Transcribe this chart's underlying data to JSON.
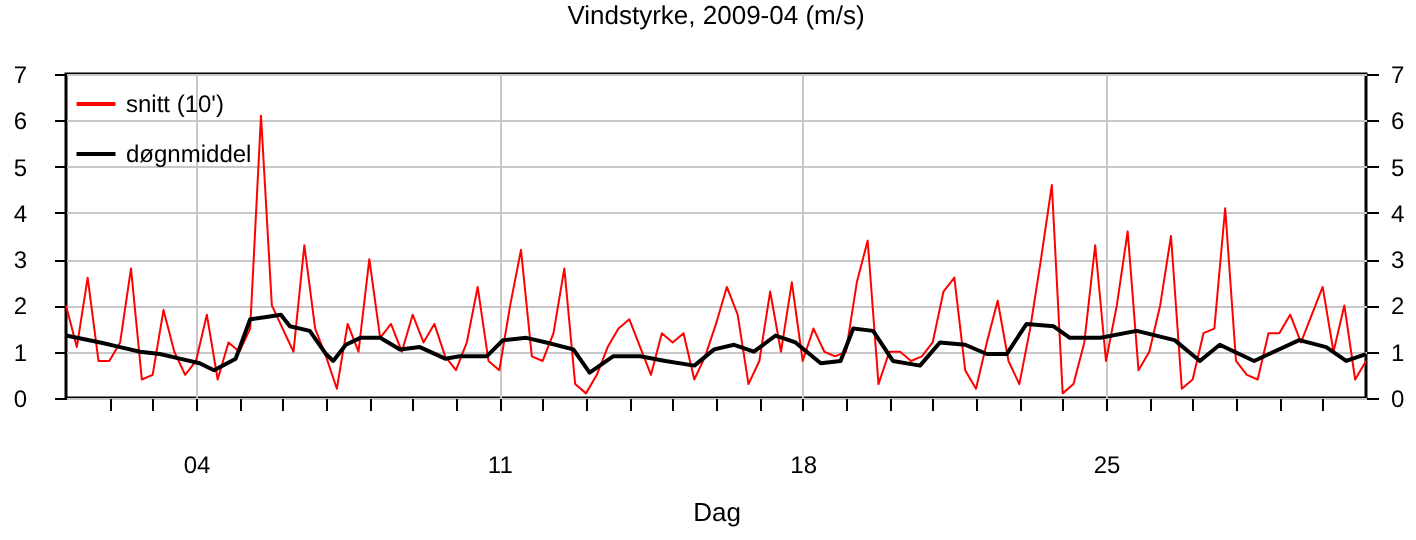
{
  "chart_data": {
    "type": "line",
    "title": "Vindstyrke, 2009-04 (m/s)",
    "xlabel": "Dag",
    "xlim": [
      "2009-04-01",
      "2009-05-01"
    ],
    "xticks": [
      {
        "value": "2009-04-02",
        "label": null
      },
      {
        "value": "2009-04-03",
        "label": null
      },
      {
        "value": "2009-04-04",
        "label": "04"
      },
      {
        "value": "2009-04-05",
        "label": null
      },
      {
        "value": "2009-04-06",
        "label": null
      },
      {
        "value": "2009-04-07",
        "label": null
      },
      {
        "value": "2009-04-08",
        "label": null
      },
      {
        "value": "2009-04-09",
        "label": null
      },
      {
        "value": "2009-04-10",
        "label": null
      },
      {
        "value": "2009-04-11",
        "label": "11"
      },
      {
        "value": "2009-04-12",
        "label": null
      },
      {
        "value": "2009-04-13",
        "label": null
      },
      {
        "value": "2009-04-14",
        "label": null
      },
      {
        "value": "2009-04-15",
        "label": null
      },
      {
        "value": "2009-04-16",
        "label": null
      },
      {
        "value": "2009-04-17",
        "label": null
      },
      {
        "value": "2009-04-18",
        "label": "18"
      },
      {
        "value": "2009-04-19",
        "label": null
      },
      {
        "value": "2009-04-20",
        "label": null
      },
      {
        "value": "2009-04-21",
        "label": null
      },
      {
        "value": "2009-04-22",
        "label": null
      },
      {
        "value": "2009-04-23",
        "label": null
      },
      {
        "value": "2009-04-24",
        "label": null
      },
      {
        "value": "2009-04-25",
        "label": "25"
      },
      {
        "value": "2009-04-26",
        "label": null
      },
      {
        "value": "2009-04-27",
        "label": null
      },
      {
        "value": "2009-04-28",
        "label": null
      },
      {
        "value": "2009-04-29",
        "label": null
      },
      {
        "value": "2009-04-30",
        "label": null
      }
    ],
    "ylim": [
      0,
      7
    ],
    "yticks": [
      0,
      1,
      2,
      3,
      4,
      5,
      6,
      7
    ],
    "y2lim": [
      0,
      7
    ],
    "y2ticks": [
      0,
      1,
      2,
      3,
      4,
      5,
      6,
      7
    ],
    "grid": true,
    "legend": "top left",
    "series": [
      {
        "name": "snitt (10')",
        "color": "#ff0000",
        "x": [
          "2009-04-01T00:00",
          "2009-04-01T06:00",
          "2009-04-01T12:00",
          "2009-04-01T18:00",
          "2009-04-02T00:00",
          "2009-04-02T06:00",
          "2009-04-02T12:00",
          "2009-04-02T18:00",
          "2009-04-03T00:00",
          "2009-04-03T06:00",
          "2009-04-03T12:00",
          "2009-04-03T18:00",
          "2009-04-04T00:00",
          "2009-04-04T06:00",
          "2009-04-04T12:00",
          "2009-04-04T18:00",
          "2009-04-05T00:00",
          "2009-04-05T06:00",
          "2009-04-05T12:00",
          "2009-04-05T18:00",
          "2009-04-06T00:00",
          "2009-04-06T06:00",
          "2009-04-06T12:00",
          "2009-04-06T18:00",
          "2009-04-07T00:00",
          "2009-04-07T06:00",
          "2009-04-07T12:00",
          "2009-04-07T18:00",
          "2009-04-08T00:00",
          "2009-04-08T06:00",
          "2009-04-08T12:00",
          "2009-04-08T18:00",
          "2009-04-09T00:00",
          "2009-04-09T06:00",
          "2009-04-09T12:00",
          "2009-04-09T18:00",
          "2009-04-10T00:00",
          "2009-04-10T06:00",
          "2009-04-10T12:00",
          "2009-04-10T18:00",
          "2009-04-11T00:00",
          "2009-04-11T06:00",
          "2009-04-11T12:00",
          "2009-04-11T18:00",
          "2009-04-12T00:00",
          "2009-04-12T06:00",
          "2009-04-12T12:00",
          "2009-04-12T18:00",
          "2009-04-13T00:00",
          "2009-04-13T06:00",
          "2009-04-13T12:00",
          "2009-04-13T18:00",
          "2009-04-14T00:00",
          "2009-04-14T06:00",
          "2009-04-14T12:00",
          "2009-04-14T18:00",
          "2009-04-15T00:00",
          "2009-04-15T06:00",
          "2009-04-15T12:00",
          "2009-04-15T18:00",
          "2009-04-16T00:00",
          "2009-04-16T06:00",
          "2009-04-16T12:00",
          "2009-04-16T18:00",
          "2009-04-17T00:00",
          "2009-04-17T06:00",
          "2009-04-17T12:00",
          "2009-04-17T18:00",
          "2009-04-18T00:00",
          "2009-04-18T06:00",
          "2009-04-18T12:00",
          "2009-04-18T18:00",
          "2009-04-19T00:00",
          "2009-04-19T06:00",
          "2009-04-19T12:00",
          "2009-04-19T18:00",
          "2009-04-20T00:00",
          "2009-04-20T06:00",
          "2009-04-20T12:00",
          "2009-04-20T18:00",
          "2009-04-21T00:00",
          "2009-04-21T06:00",
          "2009-04-21T12:00",
          "2009-04-21T18:00",
          "2009-04-22T00:00",
          "2009-04-22T06:00",
          "2009-04-22T12:00",
          "2009-04-22T18:00",
          "2009-04-23T00:00",
          "2009-04-23T06:00",
          "2009-04-23T12:00",
          "2009-04-23T18:00",
          "2009-04-24T00:00",
          "2009-04-24T06:00",
          "2009-04-24T12:00",
          "2009-04-24T18:00",
          "2009-04-25T00:00",
          "2009-04-25T06:00",
          "2009-04-25T12:00",
          "2009-04-25T18:00",
          "2009-04-26T00:00",
          "2009-04-26T06:00",
          "2009-04-26T12:00",
          "2009-04-26T18:00",
          "2009-04-27T00:00",
          "2009-04-27T06:00",
          "2009-04-27T12:00",
          "2009-04-27T18:00",
          "2009-04-28T00:00",
          "2009-04-28T06:00",
          "2009-04-28T12:00",
          "2009-04-28T18:00",
          "2009-04-29T00:00",
          "2009-04-29T06:00",
          "2009-04-29T12:00",
          "2009-04-29T18:00",
          "2009-04-30T00:00",
          "2009-04-30T06:00",
          "2009-04-30T12:00",
          "2009-04-30T18:00",
          "2009-05-01T00:00"
        ],
        "values": [
          2.0,
          1.1,
          2.6,
          0.8,
          0.8,
          1.2,
          2.8,
          0.4,
          0.5,
          1.9,
          1.0,
          0.5,
          0.8,
          1.8,
          0.4,
          1.2,
          1.0,
          1.5,
          6.1,
          2.0,
          1.5,
          1.0,
          3.3,
          1.5,
          0.9,
          0.2,
          1.6,
          1.0,
          3.0,
          1.3,
          1.6,
          1.0,
          1.8,
          1.2,
          1.6,
          0.9,
          0.6,
          1.2,
          2.4,
          0.8,
          0.6,
          2.0,
          3.2,
          0.9,
          0.8,
          1.4,
          2.8,
          0.3,
          0.1,
          0.5,
          1.1,
          1.5,
          1.7,
          1.1,
          0.5,
          1.4,
          1.2,
          1.4,
          0.4,
          0.9,
          1.6,
          2.4,
          1.8,
          0.3,
          0.8,
          2.3,
          1.0,
          2.5,
          0.8,
          1.5,
          1.0,
          0.9,
          1.0,
          2.5,
          3.4,
          0.3,
          1.0,
          1.0,
          0.8,
          0.9,
          1.2,
          2.3,
          2.6,
          0.6,
          0.2,
          1.2,
          2.1,
          0.8,
          0.3,
          1.5,
          3.0,
          4.6,
          0.1,
          0.3,
          1.2,
          3.3,
          0.8,
          2.0,
          3.6,
          0.6,
          1.0,
          2.0,
          3.5,
          0.2,
          0.4,
          1.4,
          1.5,
          4.1,
          0.8,
          0.5,
          0.4,
          1.4,
          1.4,
          1.8,
          1.2,
          1.8,
          2.4,
          1.0,
          2.0,
          0.4,
          0.8
        ]
      },
      {
        "name": "døgnmiddel",
        "color": "#000000",
        "x": [
          "2009-04-01T00:00",
          "2009-04-01T19:00",
          "2009-04-02T06:00",
          "2009-04-02T17:00",
          "2009-04-03T04:00",
          "2009-04-03T15:00",
          "2009-04-04T02:00",
          "2009-04-04T10:00",
          "2009-04-04T22:00",
          "2009-04-05T06:00",
          "2009-04-05T15:00",
          "2009-04-05T23:00",
          "2009-04-06T04:00",
          "2009-04-06T15:00",
          "2009-04-07T00:00",
          "2009-04-07T04:00",
          "2009-04-07T11:00",
          "2009-04-07T19:00",
          "2009-04-08T06:00",
          "2009-04-08T17:00",
          "2009-04-09T04:00",
          "2009-04-09T18:00",
          "2009-04-10T02:00",
          "2009-04-10T17:00",
          "2009-04-11T02:00",
          "2009-04-11T15:00",
          "2009-04-12T02:00",
          "2009-04-12T17:00",
          "2009-04-13T02:00",
          "2009-04-13T15:00",
          "2009-04-14T06:00",
          "2009-04-14T20:00",
          "2009-04-15T12:00",
          "2009-04-15T23:00",
          "2009-04-16T10:00",
          "2009-04-16T21:00",
          "2009-04-17T09:00",
          "2009-04-17T20:00",
          "2009-04-18T10:00",
          "2009-04-18T21:00",
          "2009-04-19T04:00",
          "2009-04-19T15:00",
          "2009-04-20T02:00",
          "2009-04-20T17:00",
          "2009-04-21T04:00",
          "2009-04-21T18:00",
          "2009-04-22T06:00",
          "2009-04-22T17:00",
          "2009-04-23T04:00",
          "2009-04-23T19:00",
          "2009-04-24T04:00",
          "2009-04-24T21:00",
          "2009-04-25T17:00",
          "2009-04-26T14:00",
          "2009-04-27T04:00",
          "2009-04-27T15:00",
          "2009-04-28T10:00",
          "2009-04-28T21:00",
          "2009-04-29T11:00",
          "2009-04-30T02:00",
          "2009-04-30T13:00",
          "2009-05-01T00:00"
        ],
        "values": [
          1.35,
          1.2,
          1.1,
          1.0,
          0.95,
          0.85,
          0.75,
          0.6,
          0.85,
          1.7,
          1.75,
          1.8,
          1.55,
          1.45,
          0.95,
          0.8,
          1.15,
          1.3,
          1.3,
          1.05,
          1.1,
          0.85,
          0.9,
          0.9,
          1.25,
          1.3,
          1.2,
          1.05,
          0.55,
          0.9,
          0.9,
          0.8,
          0.7,
          1.05,
          1.15,
          1.0,
          1.35,
          1.2,
          0.75,
          0.8,
          1.5,
          1.45,
          0.8,
          0.7,
          1.2,
          1.15,
          0.95,
          0.95,
          1.6,
          1.55,
          1.3,
          1.3,
          1.45,
          1.25,
          0.8,
          1.15,
          0.8,
          1.0,
          1.25,
          1.1,
          0.8,
          0.95
        ]
      }
    ]
  }
}
